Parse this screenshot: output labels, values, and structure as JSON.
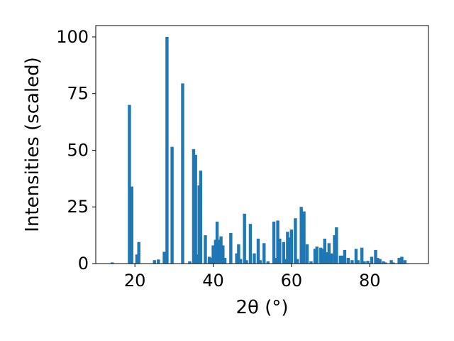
{
  "chart_data": {
    "type": "bar",
    "xlabel": "2θ (°)",
    "ylabel": "Intensities (scaled)",
    "xlim": [
      10,
      95
    ],
    "ylim": [
      0,
      105
    ],
    "xticks": [
      20,
      40,
      60,
      80
    ],
    "yticks": [
      0,
      25,
      50,
      75,
      100
    ],
    "grid": false,
    "bar_color": "#1f77b4",
    "bar_width": 0.8,
    "x": [
      14.2,
      18.6,
      19.2,
      20.5,
      21.0,
      25.0,
      26.0,
      27.5,
      28.2,
      29.5,
      32.2,
      34.0,
      35.0,
      35.5,
      36.0,
      36.4,
      36.8,
      38.0,
      39.0,
      39.5,
      40.0,
      40.6,
      41.0,
      41.5,
      42.0,
      42.5,
      43.0,
      44.5,
      46.0,
      46.5,
      47.0,
      48.0,
      48.5,
      49.5,
      50.5,
      51.5,
      52.0,
      53.0,
      54.0,
      55.5,
      56.0,
      56.5,
      57.0,
      58.0,
      58.5,
      59.0,
      59.5,
      60.0,
      61.0,
      61.5,
      62.5,
      63.2,
      64.0,
      65.0,
      66.0,
      66.5,
      67.5,
      68.0,
      68.5,
      69.0,
      69.6,
      70.2,
      71.0,
      71.5,
      72.5,
      73.0,
      73.6,
      74.5,
      75.5,
      76.5,
      77.0,
      78.0,
      78.6,
      79.5,
      80.5,
      81.5,
      82.0,
      82.6,
      83.5,
      84.0,
      85.5,
      86.0,
      87.5,
      88.2,
      89.0
    ],
    "values": [
      0.5,
      70,
      34,
      4,
      9.5,
      1.5,
      1.8,
      5.2,
      100,
      51.5,
      79.5,
      1,
      50.5,
      48,
      4,
      34.5,
      41,
      12.5,
      3,
      2.5,
      8,
      10.5,
      18.5,
      10.5,
      12,
      8,
      2.5,
      13.5,
      4.5,
      8.5,
      2,
      22,
      1.5,
      17.5,
      4.5,
      11,
      1.5,
      9,
      1,
      18.5,
      2.5,
      19,
      11,
      9.5,
      2,
      14,
      11.5,
      15,
      20,
      2,
      25,
      23,
      8.5,
      1,
      6.5,
      7.5,
      7,
      6.5,
      11,
      5,
      9,
      4.5,
      12.5,
      16,
      3.5,
      3.5,
      6,
      2.5,
      1.5,
      6.5,
      1.5,
      7,
      1,
      1.2,
      3,
      6,
      2.5,
      2,
      1,
      0.5,
      1.5,
      0.5,
      2.5,
      3,
      1.5
    ]
  }
}
